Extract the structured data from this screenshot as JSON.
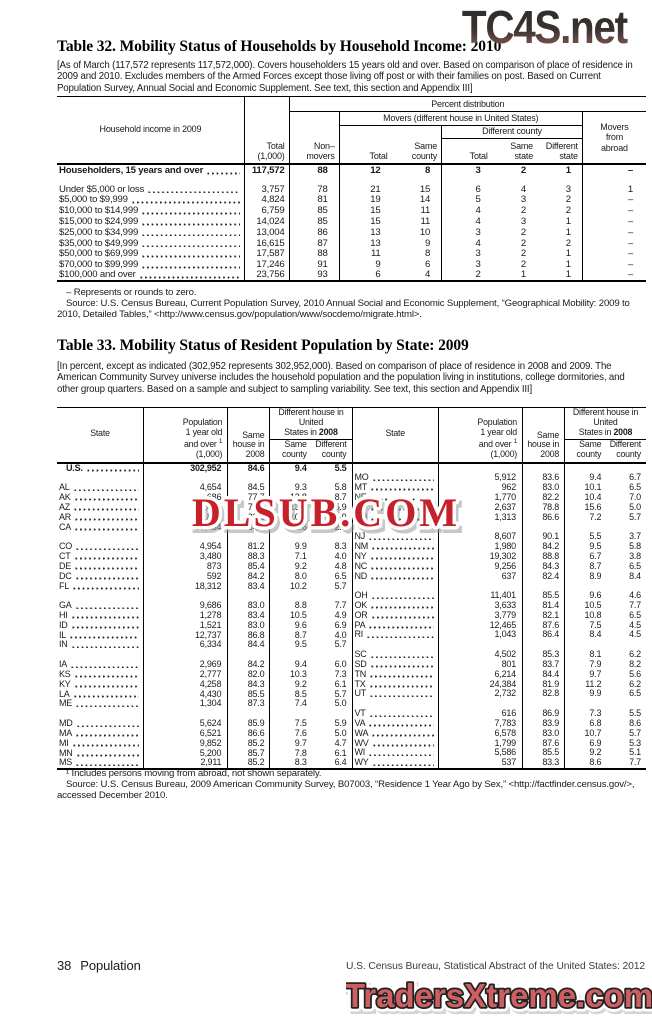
{
  "watermarks": {
    "top": "TC4S.net",
    "middle": "DLSUB.COM",
    "bottom": "TradersXtreme.com"
  },
  "colors": {
    "wm_top_dark": "#2b2b2b",
    "wm_top_rust": "#96655a",
    "wm_middle_red": "#c6212a",
    "wm_bottom_salmon": "#cd5f63"
  },
  "table32": {
    "title": "Table 32. Mobility Status of Households by Household Income: 2010",
    "note": "[As of March (117,572 represents 117,572,000). Covers householders 15 years old and over. Based on comparison of place of residence in 2009 and 2010. Excludes members of the Armed Forces except those living off post or with their families on post. Based on Current Population Survey, Annual Social and Economic Supplement. See text, this section and Appendix III]",
    "header": {
      "stub": "Household income in 2009",
      "total": "Total (1,000)",
      "percent": "Percent distribution",
      "nonmovers_l1": "Non–",
      "nonmovers_l2": "movers",
      "movers": "Movers (different house in United States)",
      "movers_total": "Total",
      "same_county": "Same county",
      "diff_county": "Different county",
      "dc_total": "Total",
      "same_state": "Same state",
      "diff_state": "Different state",
      "abroad": "Movers from abroad"
    },
    "rows": [
      {
        "label": "Householders, 15 years and over",
        "bold": true,
        "values": [
          "117,572",
          "88",
          "12",
          "8",
          "3",
          "2",
          "1",
          "–"
        ]
      },
      {
        "blank": true
      },
      {
        "label": "Under $5,000 or loss",
        "values": [
          "3,757",
          "78",
          "21",
          "15",
          "6",
          "4",
          "3",
          "1"
        ]
      },
      {
        "label": "$5,000 to $9,999",
        "values": [
          "4,824",
          "81",
          "19",
          "14",
          "5",
          "3",
          "2",
          "–"
        ]
      },
      {
        "label": "$10,000 to $14,999",
        "values": [
          "6,759",
          "85",
          "15",
          "11",
          "4",
          "2",
          "2",
          "–"
        ]
      },
      {
        "label": "$15,000 to $24,999",
        "values": [
          "14,024",
          "85",
          "15",
          "11",
          "4",
          "3",
          "1",
          "–"
        ]
      },
      {
        "label": "$25,000 to $34,999",
        "values": [
          "13,004",
          "86",
          "13",
          "10",
          "3",
          "2",
          "1",
          "–"
        ]
      },
      {
        "label": "$35,000 to $49,999",
        "values": [
          "16,615",
          "87",
          "13",
          "9",
          "4",
          "2",
          "2",
          "–"
        ]
      },
      {
        "label": "$50,000 to $69,999",
        "values": [
          "17,587",
          "88",
          "11",
          "8",
          "3",
          "2",
          "1",
          "–"
        ]
      },
      {
        "label": "$70,000 to $99,999",
        "values": [
          "17,246",
          "91",
          "9",
          "6",
          "3",
          "2",
          "1",
          "–"
        ]
      },
      {
        "label": "$100,000 and over",
        "values": [
          "23,756",
          "93",
          "6",
          "4",
          "2",
          "1",
          "1",
          "–"
        ]
      }
    ],
    "footnote_dash": "– Represents or rounds to zero.",
    "source": "Source: U.S. Census Bureau, Current Population Survey, 2010 Annual Social and Economic Supplement, “Geographical Mobility: 2009 to 2010, Detailed Tables,” <http://www.census.gov/population/www/socdemo/migrate.html>."
  },
  "table33": {
    "title": "Table 33. Mobility Status of Resident Population by State: 2009",
    "note": "[In percent, except as indicated (302,952 represents 302,952,000). Based on comparison of place of residence in 2008 and 2009. The American Community Survey universe includes the household population and the population living in institutions, college dormitories, and other group quarters. Based on a sample and subject to sampling variability. See text, this section and Appendix III]",
    "header": {
      "state": "State",
      "pop_l1": "Population",
      "pop_l2": "1 year old",
      "pop_l3": "and over",
      "pop_sup": "1",
      "pop_l4": "(1,000)",
      "same_house": "Same house in 2008",
      "dh_l1": "Different house in United",
      "dh_l2": "States in",
      "dh_year": "2008",
      "same_county": "Same county",
      "diff_county": "Different county"
    },
    "left_rows": [
      {
        "label": "U.S.",
        "bold": true,
        "values": [
          "302,952",
          "84.6",
          "9.4",
          "5.5"
        ]
      },
      {
        "blank": true
      },
      {
        "label": "AL",
        "values": [
          "4,654",
          "84.5",
          "9.3",
          "5.8"
        ]
      },
      {
        "label": "AK",
        "values": [
          "686",
          "77.7",
          "12.8",
          "8.7"
        ]
      },
      {
        "label": "AZ",
        "values": [
          "6,494",
          "79.7",
          "13.1",
          "5.9"
        ]
      },
      {
        "label": "AR",
        "values": [
          "2,853",
          "82.6",
          "10.6",
          "5.9"
        ]
      },
      {
        "label": "CA",
        "values": [
          "36,454",
          "84.4",
          "11.6",
          "2.9"
        ]
      },
      {
        "blank": true
      },
      {
        "label": "CO",
        "values": [
          "4,954",
          "81.2",
          "9.9",
          "8.3"
        ]
      },
      {
        "label": "CT",
        "values": [
          "3,480",
          "88.3",
          "7.1",
          "4.0"
        ]
      },
      {
        "label": "DE",
        "values": [
          "873",
          "85.4",
          "9.2",
          "4.8"
        ]
      },
      {
        "label": "DC",
        "values": [
          "592",
          "84.2",
          "8.0",
          "6.5"
        ]
      },
      {
        "label": "FL",
        "values": [
          "18,312",
          "83.4",
          "10.2",
          "5.7"
        ]
      },
      {
        "blank": true
      },
      {
        "label": "GA",
        "values": [
          "9,686",
          "83.0",
          "8.8",
          "7.7"
        ]
      },
      {
        "label": "HI",
        "values": [
          "1,278",
          "83.4",
          "10.5",
          "4.9"
        ]
      },
      {
        "label": "ID",
        "values": [
          "1,521",
          "83.0",
          "9.6",
          "6.9"
        ]
      },
      {
        "label": "IL",
        "values": [
          "12,737",
          "86.8",
          "8.7",
          "4.0"
        ]
      },
      {
        "label": "IN",
        "values": [
          "6,334",
          "84.4",
          "9.5",
          "5.7"
        ]
      },
      {
        "blank": true
      },
      {
        "label": "IA",
        "values": [
          "2,969",
          "84.2",
          "9.4",
          "6.0"
        ]
      },
      {
        "label": "KS",
        "values": [
          "2,777",
          "82.0",
          "10.3",
          "7.3"
        ]
      },
      {
        "label": "KY",
        "values": [
          "4,258",
          "84.3",
          "9.2",
          "6.1"
        ]
      },
      {
        "label": "LA",
        "values": [
          "4,430",
          "85.5",
          "8.5",
          "5.7"
        ]
      },
      {
        "label": "ME",
        "values": [
          "1,304",
          "87.3",
          "7.4",
          "5.0"
        ]
      },
      {
        "blank": true
      },
      {
        "label": "MD",
        "values": [
          "5,624",
          "85.9",
          "7.5",
          "5.9"
        ]
      },
      {
        "label": "MA",
        "values": [
          "6,521",
          "86.6",
          "7.6",
          "5.0"
        ]
      },
      {
        "label": "MI",
        "values": [
          "9,852",
          "85.2",
          "9.7",
          "4.7"
        ]
      },
      {
        "label": "MN",
        "values": [
          "5,200",
          "85.7",
          "7.8",
          "6.1"
        ]
      },
      {
        "label": "MS",
        "values": [
          "2,911",
          "85.2",
          "8.3",
          "6.4"
        ]
      }
    ],
    "right_rows": [
      {
        "blank": true
      },
      {
        "label": "MO",
        "values": [
          "5,912",
          "83.6",
          "9.4",
          "6.7"
        ]
      },
      {
        "label": "MT",
        "values": [
          "962",
          "83.0",
          "10.1",
          "6.5"
        ]
      },
      {
        "label": "NE",
        "values": [
          "1,770",
          "82.2",
          "10.4",
          "7.0"
        ]
      },
      {
        "label": "NV",
        "values": [
          "2,637",
          "78.8",
          "15.6",
          "5.0"
        ]
      },
      {
        "label": "NH",
        "values": [
          "1,313",
          "86.6",
          "7.2",
          "5.7"
        ]
      },
      {
        "blank": true
      },
      {
        "label": "NJ",
        "values": [
          "8,607",
          "90.1",
          "5.5",
          "3.7"
        ]
      },
      {
        "label": "NM",
        "values": [
          "1,980",
          "84.2",
          "9.5",
          "5.8"
        ]
      },
      {
        "label": "NY",
        "values": [
          "19,302",
          "88.8",
          "6.7",
          "3.8"
        ]
      },
      {
        "label": "NC",
        "values": [
          "9,256",
          "84.3",
          "8.7",
          "6.5"
        ]
      },
      {
        "label": "ND",
        "values": [
          "637",
          "82.4",
          "8.9",
          "8.4"
        ]
      },
      {
        "blank": true
      },
      {
        "label": "OH",
        "values": [
          "11,401",
          "85.5",
          "9.6",
          "4.6"
        ]
      },
      {
        "label": "OK",
        "values": [
          "3,633",
          "81.4",
          "10.5",
          "7.7"
        ]
      },
      {
        "label": "OR",
        "values": [
          "3,779",
          "82.1",
          "10.8",
          "6.5"
        ]
      },
      {
        "label": "PA",
        "values": [
          "12,465",
          "87.6",
          "7.5",
          "4.5"
        ]
      },
      {
        "label": "RI",
        "values": [
          "1,043",
          "86.4",
          "8.4",
          "4.5"
        ]
      },
      {
        "blank": true
      },
      {
        "label": "SC",
        "values": [
          "4,502",
          "85.3",
          "8.1",
          "6.2"
        ]
      },
      {
        "label": "SD",
        "values": [
          "801",
          "83.7",
          "7.9",
          "8.2"
        ]
      },
      {
        "label": "TN",
        "values": [
          "6,214",
          "84.4",
          "9.7",
          "5.6"
        ]
      },
      {
        "label": "TX",
        "values": [
          "24,384",
          "81.9",
          "11.2",
          "6.2"
        ]
      },
      {
        "label": "UT",
        "values": [
          "2,732",
          "82.8",
          "9.9",
          "6.5"
        ]
      },
      {
        "blank": true
      },
      {
        "label": "VT",
        "values": [
          "616",
          "86.9",
          "7.3",
          "5.5"
        ]
      },
      {
        "label": "VA",
        "values": [
          "7,783",
          "83.9",
          "6.8",
          "8.6"
        ]
      },
      {
        "label": "WA",
        "values": [
          "6,578",
          "83.0",
          "10.7",
          "5.7"
        ]
      },
      {
        "label": "WV",
        "values": [
          "1,799",
          "87.6",
          "6.9",
          "5.3"
        ]
      },
      {
        "label": "WI",
        "values": [
          "5,586",
          "85.5",
          "9.2",
          "5.1"
        ]
      },
      {
        "label": "WY",
        "values": [
          "537",
          "83.3",
          "8.6",
          "7.7"
        ]
      }
    ],
    "footnote": "¹ Includes persons moving from abroad, not shown separately.",
    "source": "Source: U.S. Census Bureau, 2009 American Community Survey, B07003, “Residence 1 Year Ago by Sex,” <http://factfinder.census.gov/>, accessed December 2010."
  },
  "footer": {
    "page": "38",
    "section": "Population",
    "right": "U.S. Census Bureau, Statistical Abstract of the United States: 2012"
  }
}
